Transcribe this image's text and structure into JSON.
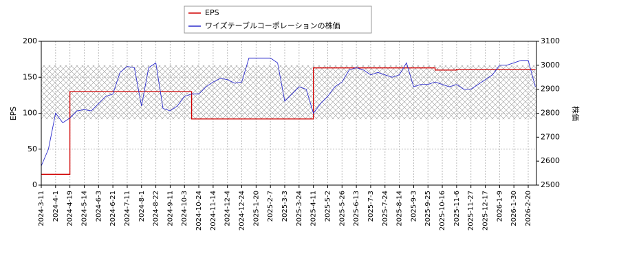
{
  "chart_data": {
    "type": "line",
    "categories": [
      "2024-3-11",
      null,
      "2024-4-1",
      null,
      "2024-4-19",
      null,
      "2024-5-14",
      null,
      "2024-6-3",
      null,
      "2024-6-21",
      null,
      "2024-7-11",
      null,
      "2024-8-1",
      null,
      "2024-8-22",
      null,
      "2024-9-11",
      null,
      "2024-10-3",
      null,
      "2024-10-24",
      null,
      "2024-11-14",
      null,
      "2024-12-4",
      null,
      "2024-12-24",
      null,
      "2025-1-20",
      null,
      "2025-2-7",
      null,
      "2025-3-3",
      null,
      "2025-3-24",
      null,
      "2025-4-11",
      null,
      "2025-5-2",
      null,
      "2025-5-26",
      null,
      "2025-6-13",
      null,
      "2025-7-3",
      null,
      "2025-7-24",
      null,
      "2025-8-14",
      null,
      "2025-9-3",
      null,
      "2025-9-25",
      null,
      "2025-10-16",
      null,
      "2025-11-6",
      null,
      "2025-11-27",
      null,
      "2025-12-17",
      null,
      "2026-1-9",
      null,
      "2026-1-30",
      null,
      "2026-2-20",
      null
    ],
    "series": [
      {
        "name": "EPS",
        "color": "#d00000",
        "step": true,
        "values": [
          15,
          15,
          15,
          15,
          130,
          130,
          130,
          130,
          130,
          130,
          130,
          130,
          130,
          130,
          130,
          130,
          130,
          130,
          130,
          130,
          130,
          92,
          92,
          92,
          92,
          92,
          92,
          92,
          92,
          92,
          92,
          92,
          92,
          92,
          92,
          92,
          92,
          92,
          163,
          163,
          163,
          163,
          163,
          163,
          163,
          163,
          163,
          163,
          163,
          163,
          163,
          163,
          163,
          163,
          163,
          160,
          160,
          160,
          161,
          161,
          161,
          161,
          161,
          161,
          161,
          161,
          161,
          161,
          161,
          161
        ]
      },
      {
        "name": "ワイズテーブルコーポレーションの株価",
        "color": "#2b2bcc",
        "axis": "y2",
        "values": [
          2580,
          2650,
          2800,
          2760,
          2780,
          2810,
          2815,
          2810,
          2840,
          2870,
          2880,
          2970,
          2995,
          2990,
          2830,
          2990,
          3010,
          2820,
          2810,
          2830,
          2870,
          2880,
          2880,
          2910,
          2930,
          2945,
          2940,
          2925,
          2930,
          3030,
          3030,
          3030,
          3030,
          3010,
          2850,
          2880,
          2910,
          2900,
          2800,
          2840,
          2870,
          2910,
          2930,
          2980,
          2990,
          2980,
          2960,
          2970,
          2960,
          2950,
          2960,
          3010,
          2910,
          2920,
          2920,
          2930,
          2920,
          2910,
          2920,
          2900,
          2900,
          2920,
          2940,
          2960,
          3000,
          3000,
          3010,
          3020,
          3020,
          2910
        ]
      }
    ],
    "ylabel": "EPS",
    "y2label": "株価",
    "ylim": [
      0,
      200
    ],
    "yticks": [
      0,
      50,
      100,
      150,
      200
    ],
    "y2lim": [
      2500,
      3100
    ],
    "y2ticks": [
      2500,
      2600,
      2700,
      2800,
      2900,
      3000,
      3100
    ],
    "shaded_y2_range": [
      2775,
      3000
    ],
    "grid": true,
    "legend": "top"
  }
}
